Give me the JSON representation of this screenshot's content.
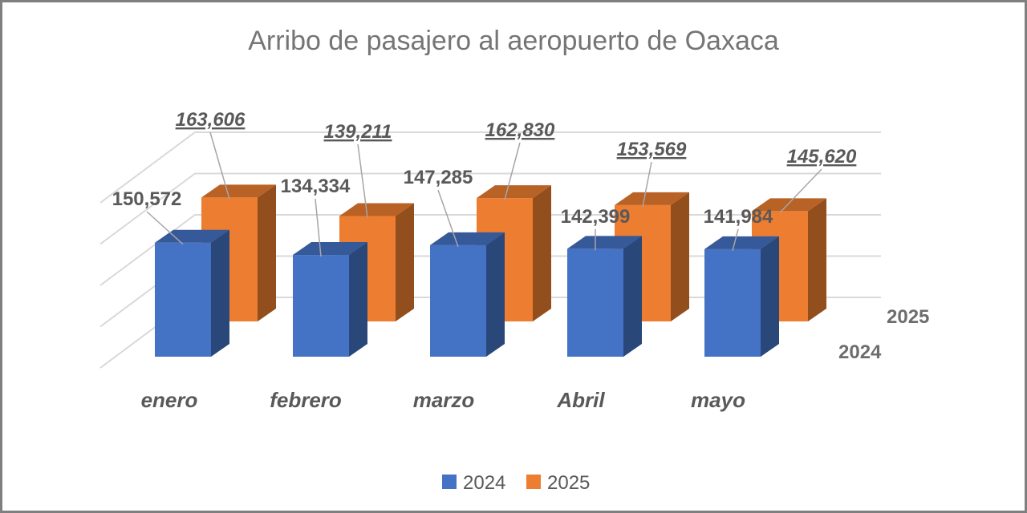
{
  "chart_data": {
    "type": "bar",
    "title": "Arribo de pasajero al aeropuerto de Oaxaca",
    "categories": [
      "enero",
      "febrero",
      "marzo",
      "Abril",
      "mayo"
    ],
    "series": [
      {
        "name": "2024",
        "color": "#4472c4",
        "values": [
          150572,
          134334,
          147285,
          142399,
          141984
        ],
        "labels": [
          "150,572",
          "134,334",
          "147,285",
          "142,399",
          "141,984"
        ]
      },
      {
        "name": "2025",
        "color": "#ed7d31",
        "values": [
          163606,
          139211,
          162830,
          153569,
          145620
        ],
        "labels": [
          "163,606",
          "139,211",
          "162,830",
          "153,569",
          "145,620"
        ]
      }
    ],
    "depth_axis_labels": [
      "2025",
      "2024"
    ],
    "grid": true,
    "legend_position": "bottom"
  }
}
